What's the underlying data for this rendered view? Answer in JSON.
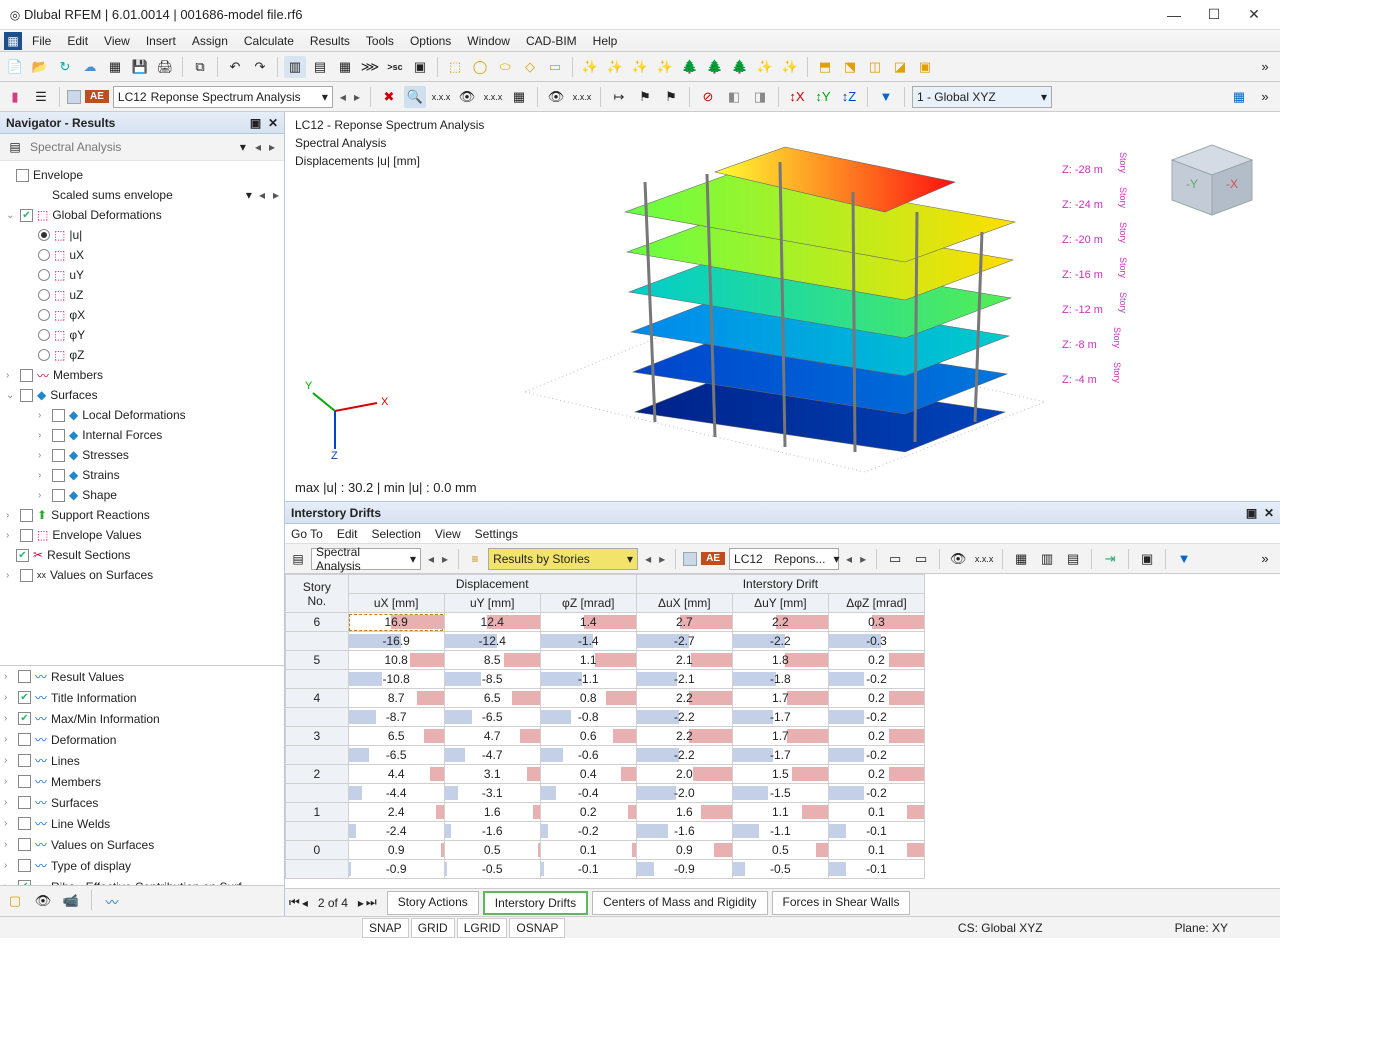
{
  "title": "Dlubal RFEM | 6.01.0014 | 001686-model file.rf6",
  "menu": [
    "File",
    "Edit",
    "View",
    "Insert",
    "Assign",
    "Calculate",
    "Results",
    "Tools",
    "Options",
    "Window",
    "CAD-BIM",
    "Help"
  ],
  "navigator": {
    "title": "Navigator - Results",
    "mode": "Spectral Analysis",
    "envelope": "Envelope",
    "envelope_sub": "Scaled sums envelope",
    "global_def": "Global Deformations",
    "radios": [
      "|u|",
      "uX",
      "uY",
      "uZ",
      "φX",
      "φY",
      "φZ"
    ],
    "members": "Members",
    "surfaces": "Surfaces",
    "surf_children": [
      "Local Deformations",
      "Internal Forces",
      "Stresses",
      "Strains",
      "Shape"
    ],
    "support_reactions": "Support Reactions",
    "envelope_values": "Envelope Values",
    "result_sections": "Result Sections",
    "values_on_surfaces": "Values on Surfaces",
    "bottom": [
      {
        "label": "Result Values",
        "checked": false
      },
      {
        "label": "Title Information",
        "checked": true
      },
      {
        "label": "Max/Min Information",
        "checked": true
      },
      {
        "label": "Deformation",
        "checked": false
      },
      {
        "label": "Lines",
        "checked": false
      },
      {
        "label": "Members",
        "checked": false
      },
      {
        "label": "Surfaces",
        "checked": false
      },
      {
        "label": "Line Welds",
        "checked": false
      },
      {
        "label": "Values on Surfaces",
        "checked": false
      },
      {
        "label": "Type of display",
        "checked": false
      },
      {
        "label": "Ribs - Effective Contribution on Surf...",
        "checked": true
      }
    ]
  },
  "viewport": {
    "line1": "LC12 - Reponse Spectrum Analysis",
    "line2": "Spectral Analysis",
    "line3": "Displacements |u|  [mm]",
    "minmax": "max |u| : 30.2 | min |u| : 0.0 mm",
    "z_levels": [
      "Z: -28 m",
      "Z: -24 m",
      "Z: -20 m",
      "Z: -16 m",
      "Z: -12 m",
      "Z: -8 m",
      "Z: -4 m"
    ]
  },
  "lc": {
    "badge": "AE",
    "code": "LC12",
    "name": "Reponse Spectrum Analysis",
    "short": "Repons..."
  },
  "coord": "1 - Global XYZ",
  "panel": {
    "title": "Interstory Drifts",
    "menu": [
      "Go To",
      "Edit",
      "Selection",
      "View",
      "Settings"
    ],
    "mode": "Spectral Analysis",
    "results_by": "Results by Stories",
    "columns_top1": "Displacement",
    "columns_top2": "Interstory Drift",
    "col_story": "Story\nNo.",
    "cols": [
      "uX [mm]",
      "uY [mm]",
      "φZ [mrad]",
      "ΔuX [mm]",
      "ΔuY [mm]",
      "ΔφZ [mrad]"
    ],
    "rows": [
      {
        "s": "6",
        "v": [
          16.9,
          12.4,
          1.4,
          2.7,
          2.2,
          0.3
        ],
        "max": [
          16.9,
          12.4,
          1.4,
          2.7,
          2.2,
          0.3
        ]
      },
      {
        "s": "",
        "v": [
          -16.9,
          -12.4,
          -1.4,
          -2.7,
          -2.2,
          -0.3
        ],
        "max": [
          16.9,
          12.4,
          1.4,
          2.7,
          2.2,
          0.3
        ]
      },
      {
        "s": "5",
        "v": [
          10.8,
          8.5,
          1.1,
          2.1,
          1.8,
          0.2
        ],
        "max": [
          16.9,
          12.4,
          1.4,
          2.7,
          2.2,
          0.3
        ]
      },
      {
        "s": "",
        "v": [
          -10.8,
          -8.5,
          -1.1,
          -2.1,
          -1.8,
          -0.2
        ],
        "max": [
          16.9,
          12.4,
          1.4,
          2.7,
          2.2,
          0.3
        ]
      },
      {
        "s": "4",
        "v": [
          8.7,
          6.5,
          0.8,
          2.2,
          1.7,
          0.2
        ],
        "max": [
          16.9,
          12.4,
          1.4,
          2.7,
          2.2,
          0.3
        ]
      },
      {
        "s": "",
        "v": [
          -8.7,
          -6.5,
          -0.8,
          -2.2,
          -1.7,
          -0.2
        ],
        "max": [
          16.9,
          12.4,
          1.4,
          2.7,
          2.2,
          0.3
        ]
      },
      {
        "s": "3",
        "v": [
          6.5,
          4.7,
          0.6,
          2.2,
          1.7,
          0.2
        ],
        "max": [
          16.9,
          12.4,
          1.4,
          2.7,
          2.2,
          0.3
        ]
      },
      {
        "s": "",
        "v": [
          -6.5,
          -4.7,
          -0.6,
          -2.2,
          -1.7,
          -0.2
        ],
        "max": [
          16.9,
          12.4,
          1.4,
          2.7,
          2.2,
          0.3
        ]
      },
      {
        "s": "2",
        "v": [
          4.4,
          3.1,
          0.4,
          2.0,
          1.5,
          0.2
        ],
        "max": [
          16.9,
          12.4,
          1.4,
          2.7,
          2.2,
          0.3
        ]
      },
      {
        "s": "",
        "v": [
          -4.4,
          -3.1,
          -0.4,
          -2.0,
          -1.5,
          -0.2
        ],
        "max": [
          16.9,
          12.4,
          1.4,
          2.7,
          2.2,
          0.3
        ]
      },
      {
        "s": "1",
        "v": [
          2.4,
          1.6,
          0.2,
          1.6,
          1.1,
          0.1
        ],
        "max": [
          16.9,
          12.4,
          1.4,
          2.7,
          2.2,
          0.3
        ]
      },
      {
        "s": "",
        "v": [
          -2.4,
          -1.6,
          -0.2,
          -1.6,
          -1.1,
          -0.1
        ],
        "max": [
          16.9,
          12.4,
          1.4,
          2.7,
          2.2,
          0.3
        ]
      },
      {
        "s": "0",
        "v": [
          0.9,
          0.5,
          0.1,
          0.9,
          0.5,
          0.1
        ],
        "max": [
          16.9,
          12.4,
          1.4,
          2.7,
          2.2,
          0.3
        ]
      },
      {
        "s": "",
        "v": [
          -0.9,
          -0.5,
          -0.1,
          -0.9,
          -0.5,
          -0.1
        ],
        "max": [
          16.9,
          12.4,
          1.4,
          2.7,
          2.2,
          0.3
        ]
      }
    ],
    "page": "2 of 4",
    "tabs": [
      "Story Actions",
      "Interstory Drifts",
      "Centers of Mass and Rigidity",
      "Forces in Shear Walls"
    ],
    "active_tab": 1
  },
  "status": {
    "snap": [
      "SNAP",
      "GRID",
      "LGRID",
      "OSNAP"
    ],
    "cs": "CS: Global XYZ",
    "plane": "Plane: XY"
  }
}
